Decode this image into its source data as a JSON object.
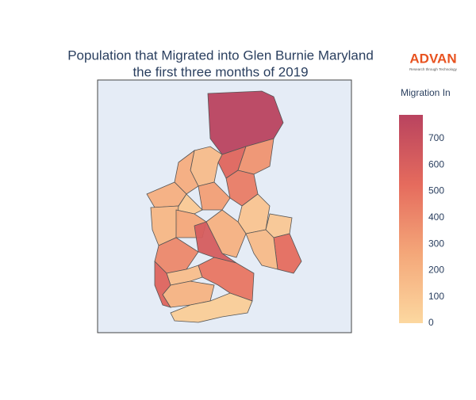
{
  "chart_data": {
    "type": "choropleth",
    "title": [
      "Population that Migrated into Glen Burnie Maryland",
      "the first three months of 2019"
    ],
    "colorbar_title": "Migration In",
    "values": [
      790,
      560,
      350,
      150,
      230,
      220,
      450,
      300,
      80,
      180,
      260,
      110,
      210,
      620,
      90,
      520,
      160,
      400,
      140,
      480,
      200,
      60,
      570
    ],
    "zlim": [
      0,
      790
    ],
    "zticks": [
      0,
      100,
      200,
      300,
      400,
      500,
      600,
      700
    ],
    "colorscale": [
      "#fcd8a0",
      "#f4a779",
      "#e56b5d",
      "#b9435f"
    ],
    "background": "#e5ecf6",
    "logo": {
      "name": "ADVAN",
      "tagline": "Research through Technology"
    }
  }
}
